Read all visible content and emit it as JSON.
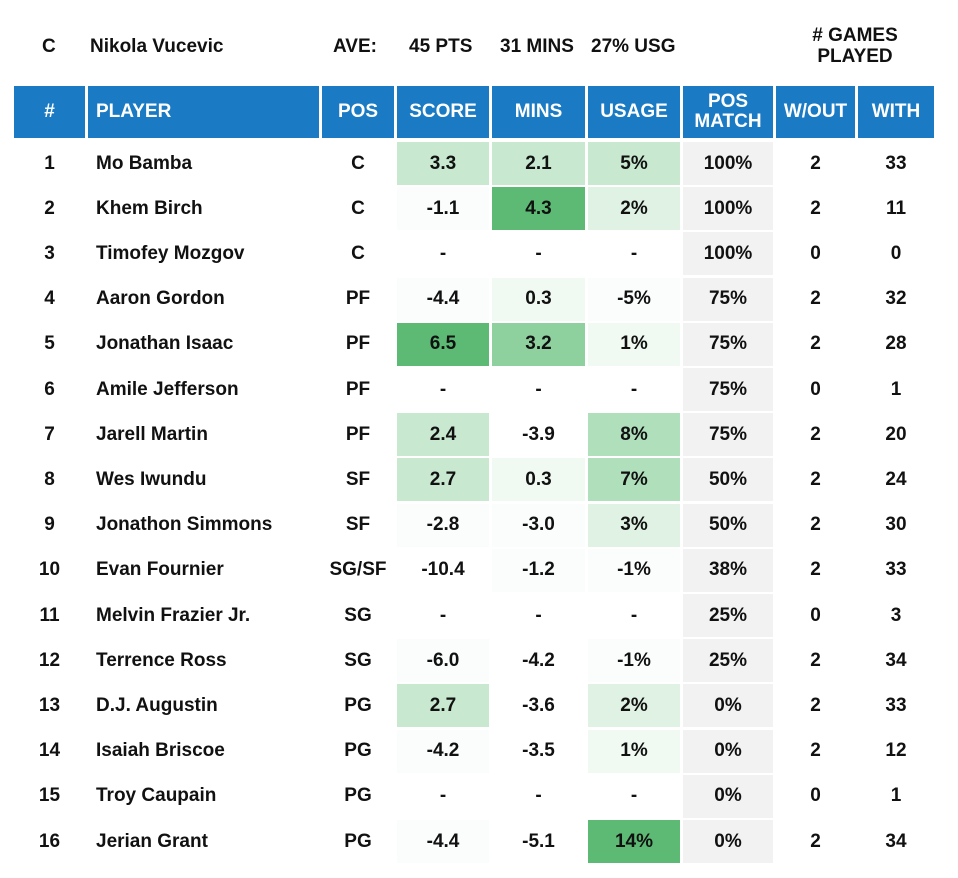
{
  "topbar": {
    "position": "C",
    "player_name": "Nikola Vucevic",
    "ave_label": "AVE:",
    "pts": "45 PTS",
    "mins": "31 MINS",
    "usg": "27% USG",
    "games_played_label": "# GAMES PLAYED"
  },
  "colors": {
    "header_bg": "#1a7bc4",
    "header_text": "#ffffff",
    "pos_match_bg": "#f2f2f2",
    "green_scale": [
      "#fafdfb",
      "#f0f9f2",
      "#dff2e3",
      "#c8e9d0",
      "#b0dfbc",
      "#8fd09f",
      "#5dba74"
    ]
  },
  "columns": [
    "#",
    "PLAYER",
    "POS",
    "SCORE",
    "MINS",
    "USAGE",
    "POS MATCH",
    "W/OUT",
    "WITH"
  ],
  "rows": [
    {
      "num": "1",
      "player": "Mo Bamba",
      "pos": "C",
      "score": "3.3",
      "mins": "2.1",
      "usage": "5%",
      "posmatch": "100%",
      "wout": "2",
      "with": "33",
      "score_shade": 3,
      "mins_shade": 3,
      "usage_shade": 3
    },
    {
      "num": "2",
      "player": "Khem Birch",
      "pos": "C",
      "score": "-1.1",
      "mins": "4.3",
      "usage": "2%",
      "posmatch": "100%",
      "wout": "2",
      "with": "11",
      "score_shade": 0,
      "mins_shade": 6,
      "usage_shade": 2
    },
    {
      "num": "3",
      "player": "Timofey Mozgov",
      "pos": "C",
      "score": "-",
      "mins": "-",
      "usage": "-",
      "posmatch": "100%",
      "wout": "0",
      "with": "0",
      "score_shade": -1,
      "mins_shade": -1,
      "usage_shade": -1
    },
    {
      "num": "4",
      "player": "Aaron Gordon",
      "pos": "PF",
      "score": "-4.4",
      "mins": "0.3",
      "usage": "-5%",
      "posmatch": "75%",
      "wout": "2",
      "with": "32",
      "score_shade": 0,
      "mins_shade": 1,
      "usage_shade": 0
    },
    {
      "num": "5",
      "player": "Jonathan Isaac",
      "pos": "PF",
      "score": "6.5",
      "mins": "3.2",
      "usage": "1%",
      "posmatch": "75%",
      "wout": "2",
      "with": "28",
      "score_shade": 6,
      "mins_shade": 5,
      "usage_shade": 1
    },
    {
      "num": "6",
      "player": "Amile Jefferson",
      "pos": "PF",
      "score": "-",
      "mins": "-",
      "usage": "-",
      "posmatch": "75%",
      "wout": "0",
      "with": "1",
      "score_shade": -1,
      "mins_shade": -1,
      "usage_shade": -1
    },
    {
      "num": "7",
      "player": "Jarell Martin",
      "pos": "PF",
      "score": "2.4",
      "mins": "-3.9",
      "usage": "8%",
      "posmatch": "75%",
      "wout": "2",
      "with": "20",
      "score_shade": 3,
      "mins_shade": -1,
      "usage_shade": 4
    },
    {
      "num": "8",
      "player": "Wes Iwundu",
      "pos": "SF",
      "score": "2.7",
      "mins": "0.3",
      "usage": "7%",
      "posmatch": "50%",
      "wout": "2",
      "with": "24",
      "score_shade": 3,
      "mins_shade": 1,
      "usage_shade": 4
    },
    {
      "num": "9",
      "player": "Jonathon Simmons",
      "pos": "SF",
      "score": "-2.8",
      "mins": "-3.0",
      "usage": "3%",
      "posmatch": "50%",
      "wout": "2",
      "with": "30",
      "score_shade": 0,
      "mins_shade": 0,
      "usage_shade": 2
    },
    {
      "num": "10",
      "player": "Evan Fournier",
      "pos": "SG/SF",
      "score": "-10.4",
      "mins": "-1.2",
      "usage": "-1%",
      "posmatch": "38%",
      "wout": "2",
      "with": "33",
      "score_shade": -1,
      "mins_shade": 0,
      "usage_shade": 0
    },
    {
      "num": "11",
      "player": "Melvin Frazier Jr.",
      "pos": "SG",
      "score": "-",
      "mins": "-",
      "usage": "-",
      "posmatch": "25%",
      "wout": "0",
      "with": "3",
      "score_shade": -1,
      "mins_shade": -1,
      "usage_shade": -1
    },
    {
      "num": "12",
      "player": "Terrence Ross",
      "pos": "SG",
      "score": "-6.0",
      "mins": "-4.2",
      "usage": "-1%",
      "posmatch": "25%",
      "wout": "2",
      "with": "34",
      "score_shade": 0,
      "mins_shade": -1,
      "usage_shade": 0
    },
    {
      "num": "13",
      "player": "D.J. Augustin",
      "pos": "PG",
      "score": "2.7",
      "mins": "-3.6",
      "usage": "2%",
      "posmatch": "0%",
      "wout": "2",
      "with": "33",
      "score_shade": 3,
      "mins_shade": -1,
      "usage_shade": 2
    },
    {
      "num": "14",
      "player": "Isaiah Briscoe",
      "pos": "PG",
      "score": "-4.2",
      "mins": "-3.5",
      "usage": "1%",
      "posmatch": "0%",
      "wout": "2",
      "with": "12",
      "score_shade": 0,
      "mins_shade": -1,
      "usage_shade": 1
    },
    {
      "num": "15",
      "player": "Troy Caupain",
      "pos": "PG",
      "score": "-",
      "mins": "-",
      "usage": "-",
      "posmatch": "0%",
      "wout": "0",
      "with": "1",
      "score_shade": -1,
      "mins_shade": -1,
      "usage_shade": -1
    },
    {
      "num": "16",
      "player": "Jerian Grant",
      "pos": "PG",
      "score": "-4.4",
      "mins": "-5.1",
      "usage": "14%",
      "posmatch": "0%",
      "wout": "2",
      "with": "34",
      "score_shade": 0,
      "mins_shade": -1,
      "usage_shade": 6
    }
  ]
}
